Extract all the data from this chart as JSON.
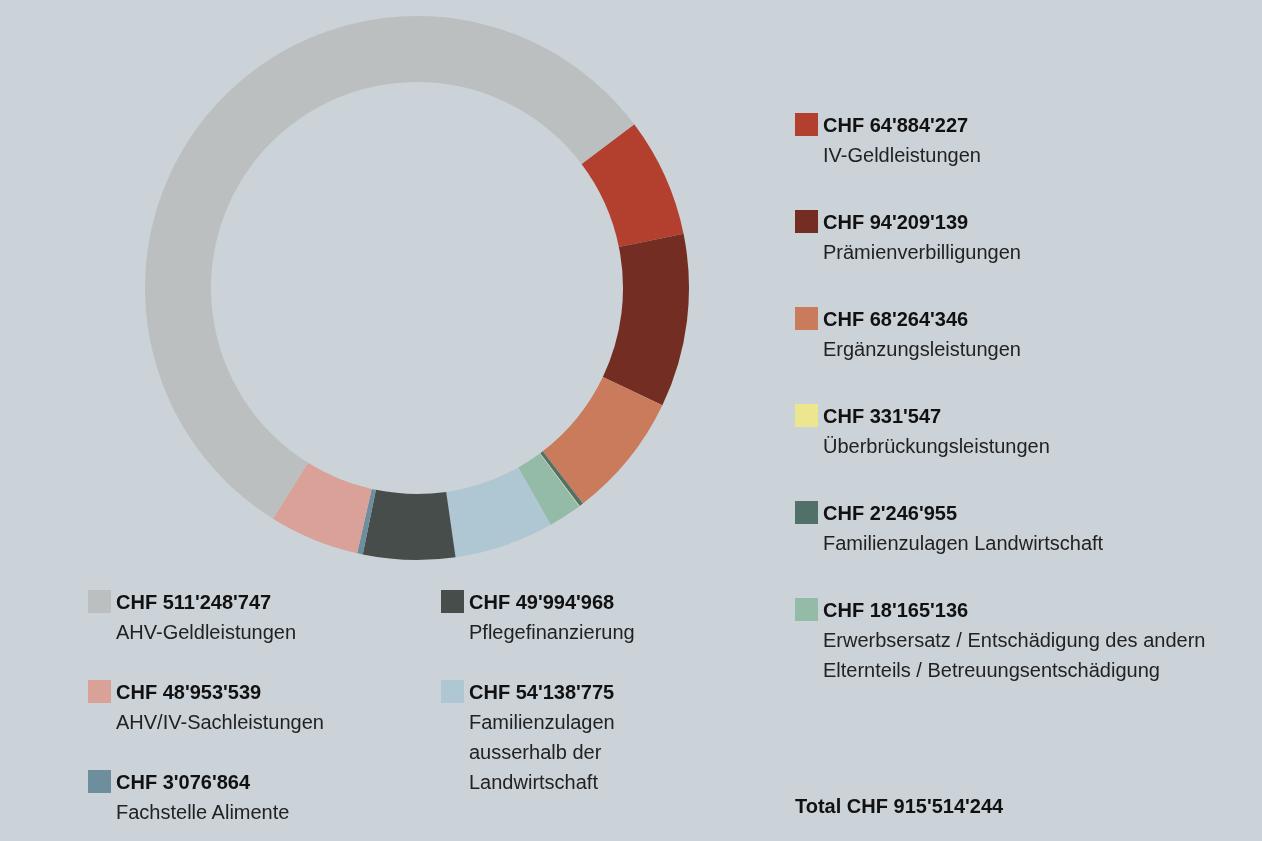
{
  "chart_data": {
    "type": "donut",
    "categories": [
      "IV-Geldleistungen",
      "Prämienverbilligungen",
      "Ergänzungsleistungen",
      "Familienzulagen Landwirtschaft",
      "Überbrückungsleistungen",
      "Erwerbsersatz / Entschädigung des andern Elternteils / Betreuungsentschädigung",
      "Familienzulagen ausserhalb der Landwirtschaft",
      "Pflegefinanzierung",
      "Fachstelle Alimente",
      "AHV/IV-Sachleistungen",
      "AHV-Geldleistungen"
    ],
    "values": [
      64884227,
      94209139,
      68264346,
      2246955,
      331547,
      18165136,
      54138775,
      49994968,
      3076864,
      48953539,
      511248747
    ],
    "value_labels": [
      "CHF 64'884'227",
      "CHF 94'209'139",
      "CHF 68'264'346",
      "CHF 2'246'955",
      "CHF 331'547",
      "CHF 18'165'136",
      "CHF 54'138'775",
      "CHF 49'994'968",
      "CHF 3'076'864",
      "CHF 48'953'539",
      "CHF 511'248'747"
    ],
    "colors": [
      "#b3402f",
      "#742d23",
      "#c97b5c",
      "#52706a",
      "#ece68f",
      "#94baa8",
      "#afc7d2",
      "#474d4b",
      "#6e8e9e",
      "#d9a198",
      "#bcbfbf"
    ],
    "legend": "right",
    "annotations": [
      "Total CHF 915'514'244"
    ]
  }
}
